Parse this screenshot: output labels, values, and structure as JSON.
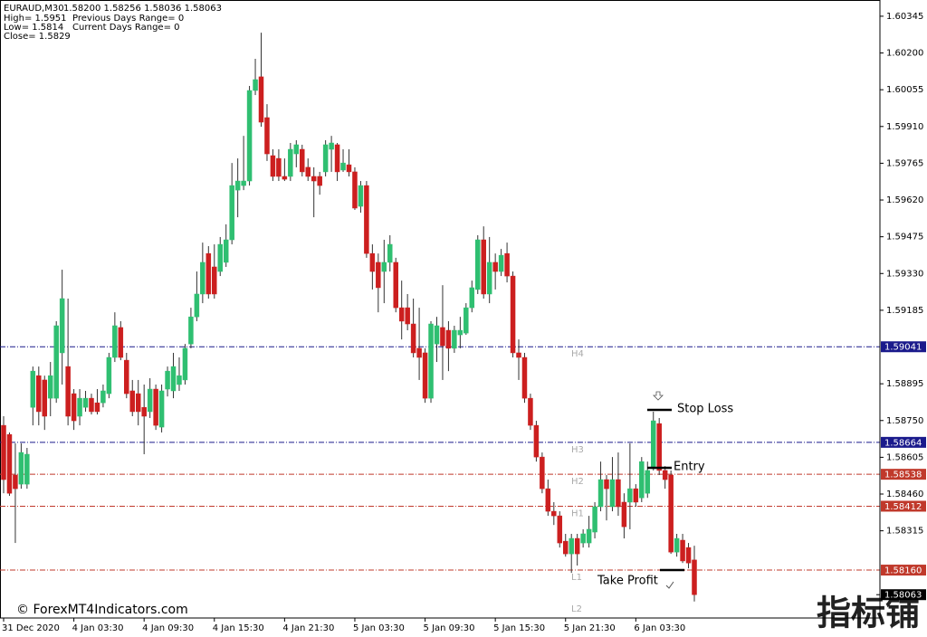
{
  "chart_data": {
    "type": "candlestick",
    "symbol_text": "EURAUD,M30",
    "ohlc_text": "1.58200 1.58256 1.58036 1.58063",
    "info": [
      [
        "High= 1.5951",
        "Previous Days Range= 0"
      ],
      [
        "Low= 1.5814",
        "Current Days Range= 0"
      ],
      [
        "Close= 1.5829"
      ]
    ],
    "watermark": "© ForexMT4Indicators.com",
    "corner_mark": "指标铺",
    "annotations": {
      "stop_loss": "Stop Loss",
      "entry": "Entry",
      "take_profit": "Take Profit"
    },
    "up_color": "#2fbf71",
    "down_color": "#cc1f1f",
    "wick_color": "#333333",
    "ylim": [
      1.57971,
      1.60409
    ],
    "yticks": [
      1.60345,
      {
        "value": 1.602,
        "label": "1.60200"
      },
      1.60055,
      {
        "value": 1.5991,
        "label": "1.59910"
      },
      1.59765,
      {
        "value": 1.5962,
        "label": "1.59620"
      },
      1.59475,
      {
        "value": 1.5933,
        "label": "1.59330"
      },
      1.59185,
      1.58895,
      {
        "value": 1.5875,
        "label": "1.58750"
      },
      1.58605,
      {
        "value": 1.5846,
        "label": "1.58460"
      },
      1.58315
    ],
    "grid": false,
    "levels": [
      {
        "name": "H4",
        "value": 1.59041,
        "color": "#1a1a8c",
        "line": true
      },
      {
        "name": "H3",
        "value": 1.58664,
        "color": "#1a1a8c",
        "line": true
      },
      {
        "name": "H2",
        "value": 1.58538,
        "color": "#c0392b",
        "line": true
      },
      {
        "name": "H1",
        "value": 1.58412,
        "color": "#c0392b",
        "line": true
      },
      {
        "name": "L1",
        "value": 1.5816,
        "value_label": "1.58160",
        "color": "#c0392b",
        "line": true
      },
      {
        "name": "L2",
        "value": 1.58035,
        "color": "#c0392b",
        "line": false
      }
    ],
    "categories": [
      "31 Dec 2020",
      null,
      null,
      null,
      null,
      null,
      null,
      null,
      null,
      null,
      null,
      null,
      "4 Jan 03:30",
      null,
      null,
      null,
      null,
      null,
      null,
      null,
      null,
      null,
      null,
      null,
      "4 Jan 09:30",
      null,
      null,
      null,
      null,
      null,
      null,
      null,
      null,
      null,
      null,
      null,
      "4 Jan 15:30",
      null,
      null,
      null,
      null,
      null,
      null,
      null,
      null,
      null,
      null,
      null,
      "4 Jan 21:30",
      null,
      null,
      null,
      null,
      null,
      null,
      null,
      null,
      null,
      null,
      null,
      "5 Jan 03:30",
      null,
      null,
      null,
      null,
      null,
      null,
      null,
      null,
      null,
      null,
      null,
      "5 Jan 09:30",
      null,
      null,
      null,
      null,
      null,
      null,
      null,
      null,
      null,
      null,
      null,
      "5 Jan 15:30",
      null,
      null,
      null,
      null,
      null,
      null,
      null,
      null,
      null,
      null,
      null,
      "5 Jan 21:30",
      null,
      null,
      null,
      null,
      null,
      null,
      null,
      null,
      null,
      null,
      null,
      "6 Jan 03:30",
      null,
      null,
      null,
      null,
      null,
      null,
      null,
      null,
      null,
      null
    ],
    "open": [
      1.58731,
      1.58695,
      1.58535,
      1.58499,
      1.58499,
      1.58802,
      1.58927,
      1.5891,
      1.58838,
      1.58838,
      1.59017,
      1.58963,
      1.58856,
      1.58767,
      1.58802,
      1.58838,
      1.5882,
      1.5882,
      1.58856,
      1.58999,
      1.59117,
      1.58988,
      1.58867,
      1.58856,
      1.58802,
      1.58785,
      1.58874,
      1.58724,
      1.58874,
      1.58867,
      1.58892,
      1.5891,
      1.59052,
      1.59159,
      1.59249,
      1.59409,
      1.59356,
      1.59338,
      1.59374,
      1.59463,
      1.59659,
      1.59677,
      1.59695,
      1.60052,
      1.60106,
      1.59945,
      1.59795,
      1.59784,
      1.59713,
      1.59713,
      1.59802,
      1.5982,
      1.59749,
      1.59713,
      1.59713,
      1.59731,
      1.5982,
      1.59838,
      1.59738,
      1.59759,
      1.59731,
      1.59595,
      1.59677,
      1.59409,
      1.59374,
      1.59338,
      1.59374,
      1.59374,
      1.59195,
      1.59195,
      1.59131,
      1.59035,
      1.59017,
      1.58838,
      1.59052,
      1.59117,
      1.59106,
      1.59035,
      1.59088,
      1.59095,
      1.59195,
      1.59267,
      1.59463,
      1.59249,
      1.59374,
      1.59338,
      1.59409,
      1.5932,
      1.59017,
      1.58999,
      1.58838,
      1.58731,
      1.58606,
      1.58481,
      1.58392,
      1.58374,
      1.58274,
      1.58224,
      1.58285,
      1.58267,
      1.58267,
      1.5831,
      1.5841,
      1.58517,
      1.5841,
      1.58517,
      1.58428,
      1.58428,
      1.58481,
      1.58445,
      1.58463,
      1.5856,
      1.58738,
      1.58553,
      1.58535,
      1.58231,
      1.58278,
      1.58249,
      1.582
    ],
    "high": [
      1.58767,
      1.58703,
      1.5866,
      1.5866,
      1.58642,
      1.58963,
      1.58963,
      1.58927,
      1.58981,
      1.59142,
      1.59345,
      1.59231,
      1.58874,
      1.58874,
      1.58867,
      1.58856,
      1.58874,
      1.58892,
      1.59017,
      1.59177,
      1.59142,
      1.59017,
      1.5891,
      1.5891,
      1.58892,
      1.58917,
      1.58892,
      1.58892,
      1.58963,
      1.59017,
      1.58999,
      1.59052,
      1.59195,
      1.59338,
      1.59452,
      1.59438,
      1.59445,
      1.59474,
      1.59524,
      1.59766,
      1.59784,
      1.59873,
      1.6007,
      1.60177,
      1.6028,
      1.59998,
      1.5982,
      1.5982,
      1.59784,
      1.59845,
      1.59856,
      1.59838,
      1.59784,
      1.59749,
      1.59731,
      1.59856,
      1.59873,
      1.59845,
      1.5982,
      1.5982,
      1.59749,
      1.59695,
      1.59695,
      1.59445,
      1.59409,
      1.59463,
      1.59481,
      1.59392,
      1.59302,
      1.59249,
      1.59231,
      1.59195,
      1.59035,
      1.59142,
      1.59159,
      1.59284,
      1.59142,
      1.59124,
      1.59159,
      1.59213,
      1.59302,
      1.59481,
      1.59516,
      1.59474,
      1.59409,
      1.59427,
      1.59452,
      1.59338,
      1.5907,
      1.59017,
      1.58856,
      1.58749,
      1.58624,
      1.58517,
      1.58428,
      1.58392,
      1.58303,
      1.58303,
      1.58303,
      1.58321,
      1.58374,
      1.58428,
      1.58588,
      1.58535,
      1.58606,
      1.58624,
      1.58463,
      1.5866,
      1.58499,
      1.58606,
      1.58588,
      1.58785,
      1.5876,
      1.5857,
      1.58553,
      1.58303,
      1.58303,
      1.58267,
      1.58256
    ],
    "low": [
      1.58463,
      1.58453,
      1.58267,
      1.58481,
      1.58481,
      1.58731,
      1.58731,
      1.58713,
      1.58767,
      1.5882,
      1.58892,
      1.58731,
      1.58713,
      1.58731,
      1.58785,
      1.58774,
      1.58774,
      1.58802,
      1.58838,
      1.58981,
      1.58988,
      1.58838,
      1.58767,
      1.58731,
      1.58617,
      1.5876,
      1.58713,
      1.58703,
      1.58845,
      1.58838,
      1.58867,
      1.58892,
      1.59035,
      1.59142,
      1.59213,
      1.59231,
      1.59231,
      1.5932,
      1.59356,
      1.59445,
      1.59552,
      1.59659,
      1.59677,
      1.60034,
      1.59909,
      1.59774,
      1.59695,
      1.59695,
      1.59695,
      1.59695,
      1.59749,
      1.59713,
      1.59695,
      1.59552,
      1.59641,
      1.59713,
      1.59731,
      1.59695,
      1.59731,
      1.59713,
      1.59581,
      1.5957,
      1.59392,
      1.59267,
      1.59177,
      1.59213,
      1.59338,
      1.59177,
      1.5907,
      1.59106,
      1.58999,
      1.5891,
      1.5882,
      1.5882,
      1.58981,
      1.5891,
      1.58945,
      1.59017,
      1.59035,
      1.59088,
      1.59177,
      1.59249,
      1.59231,
      1.59213,
      1.59267,
      1.5932,
      1.59295,
      1.58999,
      1.5891,
      1.5882,
      1.58713,
      1.58588,
      1.58463,
      1.58374,
      1.58338,
      1.58249,
      1.58213,
      1.58149,
      1.58178,
      1.58249,
      1.58249,
      1.58285,
      1.58392,
      1.58356,
      1.58392,
      1.58374,
      1.58285,
      1.58321,
      1.5841,
      1.58428,
      1.58445,
      1.58553,
      1.58535,
      1.58481,
      1.58224,
      1.58213,
      1.58188,
      1.58167,
      1.58036
    ],
    "close": [
      1.58517,
      1.58463,
      1.58481,
      1.58624,
      1.58617,
      1.58945,
      1.58785,
      1.58767,
      1.58927,
      1.59124,
      1.59231,
      1.58767,
      1.58749,
      1.58838,
      1.58838,
      1.58785,
      1.58785,
      1.58867,
      1.58999,
      1.59124,
      1.58999,
      1.58856,
      1.58785,
      1.58785,
      1.58767,
      1.58874,
      1.58731,
      1.58867,
      1.58945,
      1.58963,
      1.58927,
      1.59035,
      1.59159,
      1.59249,
      1.59374,
      1.59249,
      1.59249,
      1.59445,
      1.59463,
      1.59677,
      1.59695,
      1.59695,
      1.60052,
      1.60095,
      1.59927,
      1.59802,
      1.59713,
      1.59713,
      1.59702,
      1.5982,
      1.59838,
      1.59731,
      1.59713,
      1.59695,
      1.59677,
      1.59838,
      1.59845,
      1.59731,
      1.59766,
      1.59731,
      1.59588,
      1.59677,
      1.59409,
      1.59338,
      1.59274,
      1.59374,
      1.59445,
      1.59195,
      1.59142,
      1.59131,
      1.59017,
      1.58999,
      1.58838,
      1.59131,
      1.59124,
      1.59045,
      1.59035,
      1.59106,
      1.59106,
      1.59195,
      1.59274,
      1.59463,
      1.59249,
      1.59374,
      1.59338,
      1.59402,
      1.5932,
      1.59017,
      1.58999,
      1.58838,
      1.58731,
      1.58606,
      1.58481,
      1.58392,
      1.58374,
      1.58267,
      1.58224,
      1.58285,
      1.58224,
      1.58303,
      1.58321,
      1.5841,
      1.58517,
      1.58481,
      1.58517,
      1.5841,
      1.58331,
      1.58481,
      1.58428,
      1.58588,
      1.58553,
      1.58749,
      1.58553,
      1.58517,
      1.58231,
      1.58285,
      1.58196,
      1.58188,
      1.58063
    ]
  }
}
